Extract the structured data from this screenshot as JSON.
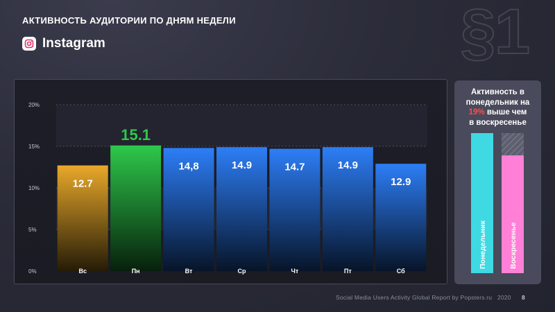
{
  "header": {
    "title": "АКТИВНОСТЬ АУДИТОРИИ ПО ДНЯМ НЕДЕЛИ",
    "network_name": "Instagram",
    "network_icon": "instagram-icon",
    "section_mark": "§1"
  },
  "chart_data": {
    "type": "bar",
    "categories": [
      "Вс",
      "Пн",
      "Вт",
      "Ср",
      "Чт",
      "Пт",
      "Сб"
    ],
    "values": [
      12.7,
      15.1,
      14.8,
      14.9,
      14.7,
      14.9,
      12.9
    ],
    "value_labels": [
      "12.7",
      "15.1",
      "14,8",
      "14.9",
      "14.7",
      "14.9",
      "12.9"
    ],
    "bar_colors": [
      "orange",
      "green",
      "blue",
      "blue",
      "blue",
      "blue",
      "blue"
    ],
    "highlight_category": "Пн",
    "yticks": [
      "0%",
      "5%",
      "10%",
      "15%",
      "20%"
    ],
    "ylim": [
      0,
      20
    ],
    "grid": true,
    "xlabel": "",
    "ylabel": ""
  },
  "colors": {
    "orange": "#e9a92a",
    "green": "#2ec84b",
    "blue": "#2d7ef7",
    "cyan": "#3fd9e3",
    "pink": "#ff80d6",
    "highlight": "#ff4d4d"
  },
  "comparison": {
    "text_line1": "Активность в",
    "text_line2": "понедельник на",
    "percent": "19%",
    "text_line3_rest": " выше чем",
    "text_line4": "в воскресенье",
    "bars": [
      {
        "label": "Понедельник",
        "value": 15.1
      },
      {
        "label": "Воскресенье",
        "value": 12.7
      }
    ]
  },
  "footer": {
    "source": "Social Media Users Activity Global Report by Popsters.ru",
    "year": "2020",
    "page": "8"
  }
}
